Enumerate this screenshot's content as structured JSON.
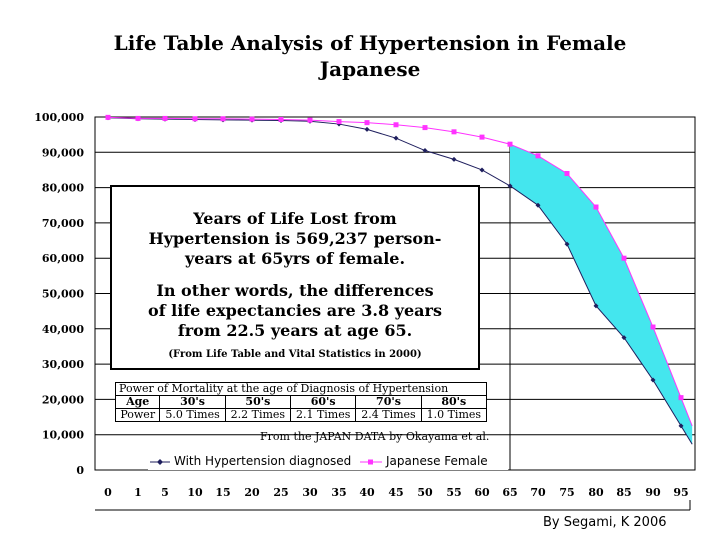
{
  "chart_data": {
    "type": "line",
    "title": "Life Table Analysis of Hypertension in Female Japanese",
    "x": [
      0,
      1,
      5,
      10,
      15,
      20,
      25,
      30,
      35,
      40,
      45,
      50,
      55,
      60,
      65,
      70,
      75,
      80,
      85,
      90,
      95
    ],
    "series": [
      {
        "name": "With Hypertension diagnosed",
        "color": "#1f1f5e",
        "values": [
          99800,
          99500,
          99400,
          99300,
          99200,
          99100,
          99000,
          98800,
          98000,
          96500,
          94000,
          90500,
          88000,
          85000,
          80500,
          75000,
          64000,
          46500,
          37500,
          25500,
          12500
        ]
      },
      {
        "name": "Japanese Female",
        "color": "#ff33ff",
        "values": [
          99900,
          99600,
          99600,
          99500,
          99500,
          99400,
          99300,
          99100,
          98700,
          98400,
          97800,
          97000,
          95800,
          94300,
          92300,
          89000,
          84000,
          74500,
          60000,
          40500,
          20500
        ]
      }
    ],
    "fill_between": {
      "from_x": 65,
      "to_x": 97,
      "color": "#44e6ee"
    },
    "x_ticks": [
      "0",
      "1",
      "5",
      "10",
      "15",
      "20",
      "25",
      "30",
      "35",
      "40",
      "45",
      "50",
      "55",
      "60",
      "65",
      "70",
      "75",
      "80",
      "85",
      "90",
      "95"
    ],
    "y_ticks": [
      "0",
      "10,000",
      "20,000",
      "30,000",
      "40,000",
      "50,000",
      "60,000",
      "70,000",
      "80,000",
      "90,000",
      "100,000"
    ],
    "ylim": [
      0,
      100000
    ],
    "grid": true,
    "legend_position": "bottom"
  },
  "annotation": {
    "paragraph1": [
      "Years of Life Lost from",
      "Hypertension is 569,237 person-",
      "years at 65yrs of female."
    ],
    "paragraph2": [
      "In other words, the differences",
      "of life expectancies are 3.8 years",
      "from 22.5 years at age 65."
    ],
    "source": "(From Life Table and Vital Statistics in 2000)"
  },
  "mortality_table": {
    "caption": "Power of Mortality at the age of Diagnosis of Hypertension",
    "header": [
      "Age",
      "30's",
      "50's",
      "60's",
      "70's",
      "80's"
    ],
    "row": [
      "Power",
      "5.0 Times",
      "2.2 Times",
      "2.1 Times",
      "2.4 Times",
      "1.0 Times"
    ],
    "source": "From the JAPAN DATA by Okayama et al."
  },
  "credit": "By Segami, K 2006"
}
